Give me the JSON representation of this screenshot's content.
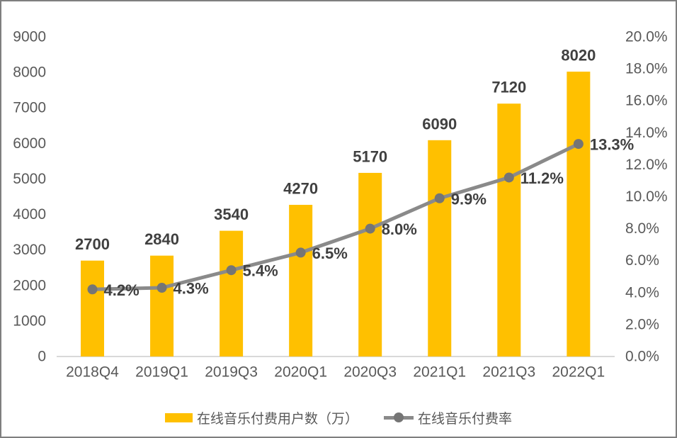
{
  "legend": {
    "bar_label": "在线音乐付费用户数（万）",
    "line_label": "在线音乐付费率"
  },
  "chart_data": {
    "type": "combo",
    "title": "",
    "categories": [
      "2018Q4",
      "2019Q1",
      "2019Q3",
      "2020Q1",
      "2020Q3",
      "2021Q1",
      "2021Q3",
      "2022Q1"
    ],
    "series": [
      {
        "name": "在线音乐付费用户数（万）",
        "type": "bar",
        "axis": "left",
        "values": [
          2700,
          2840,
          3540,
          4270,
          5170,
          6090,
          7120,
          8020
        ],
        "labels": [
          "2700",
          "2840",
          "3540",
          "4270",
          "5170",
          "6090",
          "7120",
          "8020"
        ],
        "color": "#FFC000"
      },
      {
        "name": "在线音乐付费率",
        "type": "line",
        "axis": "right",
        "values": [
          4.2,
          4.3,
          5.4,
          6.5,
          8.0,
          9.9,
          11.2,
          13.3
        ],
        "labels": [
          "4.2%",
          "4.3%",
          "5.4%",
          "6.5%",
          "8.0%",
          "9.9%",
          "11.2%",
          "13.3%"
        ],
        "color": "#8A8A8A",
        "marker_color": "#757575"
      }
    ],
    "axes": {
      "left": {
        "min": 0,
        "max": 9000,
        "step": 1000,
        "tick_labels": [
          "0",
          "1000",
          "2000",
          "3000",
          "4000",
          "5000",
          "6000",
          "7000",
          "8000",
          "9000"
        ]
      },
      "right": {
        "min": 0,
        "max": 20,
        "step": 2,
        "tick_labels": [
          "0.0%",
          "2.0%",
          "4.0%",
          "6.0%",
          "8.0%",
          "10.0%",
          "12.0%",
          "14.0%",
          "16.0%",
          "18.0%",
          "20.0%"
        ]
      }
    },
    "grid": false,
    "legend_position": "bottom",
    "label_color": "#404040",
    "tick_color": "#595959",
    "axis_line_color": "#D9D9D9"
  }
}
